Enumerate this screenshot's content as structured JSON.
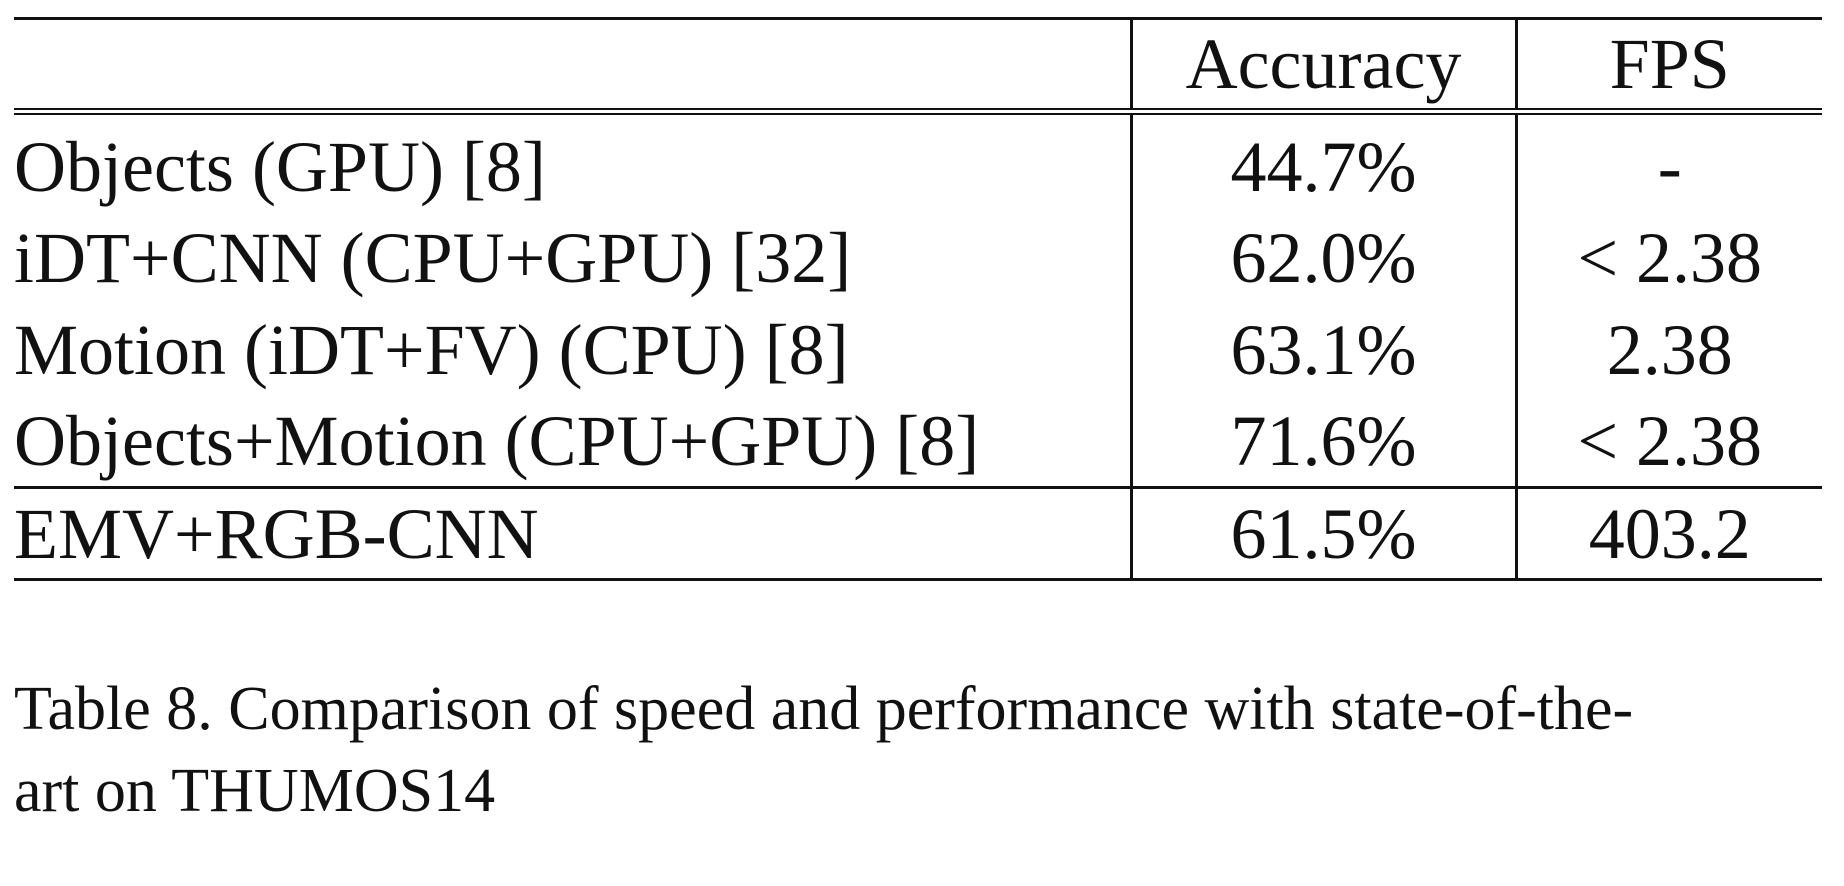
{
  "table": {
    "headers": [
      "",
      "Accuracy",
      "FPS"
    ],
    "rows": [
      {
        "method": "Objects (GPU) [8]",
        "accuracy": "44.7%",
        "fps": "-"
      },
      {
        "method": "iDT+CNN (CPU+GPU) [32]",
        "accuracy": "62.0%",
        "fps": "< 2.38"
      },
      {
        "method": "Motion (iDT+FV) (CPU) [8]",
        "accuracy": "63.1%",
        "fps": "2.38"
      },
      {
        "method": "Objects+Motion (CPU+GPU) [8]",
        "accuracy": "71.6%",
        "fps": "< 2.38"
      }
    ],
    "highlight_row": {
      "method": "EMV+RGB-CNN",
      "accuracy": "61.5%",
      "fps": "403.2"
    }
  },
  "caption": {
    "line1": "Table 8. Comparison of speed and performance with state-of-the-",
    "line2": "art on THUMOS14"
  }
}
